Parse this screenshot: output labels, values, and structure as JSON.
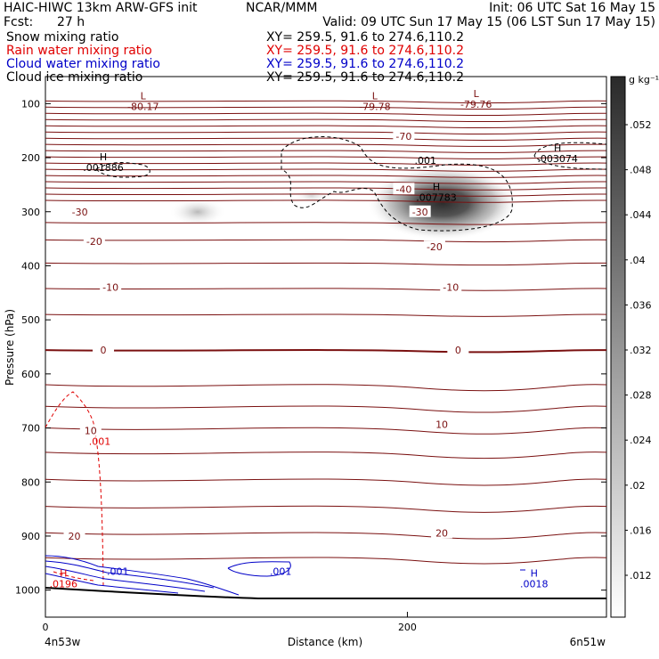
{
  "header": {
    "model": "HAIC-HIWC 13km ARW-GFS init",
    "org": "NCAR/MMM",
    "init": "Init: 06 UTC Sat 16 May 15",
    "fcst_label": "Fcst:",
    "fcst_value": "27 h",
    "valid": "Valid: 09 UTC Sun 17 May 15 (06 LST Sun 17 May 15)",
    "xy": "XY= 259.5, 91.6 to 274.6,110.2"
  },
  "fields": [
    {
      "name": "Snow mixing ratio",
      "color": "#000000"
    },
    {
      "name": "Rain water mixing ratio",
      "color": "#e00000"
    },
    {
      "name": "Cloud water mixing ratio",
      "color": "#0000c8"
    },
    {
      "name": "Cloud ice mixing ratio",
      "color": "#000000"
    }
  ],
  "colors": {
    "temperature": "#7a1010",
    "cloud_ice": "#000000",
    "rain": "#e00000",
    "cloud_water": "#0000c8",
    "terrain": "#000000"
  },
  "chart_data": {
    "type": "contour",
    "xlabel": "Distance (km)",
    "ylabel": "Pressure (hPa)",
    "xlim": [
      0,
      310
    ],
    "ylim": [
      1050,
      50
    ],
    "x_ticks": [
      0,
      200
    ],
    "y_ticks": [
      100,
      200,
      300,
      400,
      500,
      600,
      700,
      800,
      900,
      1000
    ],
    "endpoints": {
      "left": "4n53w",
      "right": "6n51w"
    },
    "colorbar": {
      "unit": "g kg⁻¹",
      "ticks": [
        ".052",
        ".048",
        ".044",
        ".04",
        ".036",
        ".032",
        ".028",
        ".024",
        ".02",
        ".016",
        ".012"
      ]
    },
    "temperature_isotherms": [
      {
        "label": "-70",
        "x": 198,
        "p": 160
      },
      {
        "label": "-40",
        "x": 198,
        "p": 258
      },
      {
        "label": "-30",
        "x": 19,
        "p": 300
      },
      {
        "label": "-30",
        "x": 207,
        "p": 300
      },
      {
        "label": "-20",
        "x": 27,
        "p": 355
      },
      {
        "label": "-20",
        "x": 215,
        "p": 365
      },
      {
        "label": "-10",
        "x": 36,
        "p": 440
      },
      {
        "label": "-10",
        "x": 224,
        "p": 440
      },
      {
        "label": "0",
        "x": 32,
        "p": 556
      },
      {
        "label": "0",
        "x": 228,
        "p": 556
      },
      {
        "label": "10",
        "x": 25,
        "p": 705
      },
      {
        "label": "10",
        "x": 219,
        "p": 693
      },
      {
        "label": "20",
        "x": 16,
        "p": 900
      },
      {
        "label": "20",
        "x": 219,
        "p": 894
      }
    ],
    "extrema": [
      {
        "type": "L",
        "value": "-80.17",
        "x": 54,
        "p": 92
      },
      {
        "type": "L",
        "value": "-79.78",
        "x": 182,
        "p": 92
      },
      {
        "type": "L",
        "value": "-79.76",
        "x": 238,
        "p": 88
      },
      {
        "type": "H",
        "value": ".001886",
        "x": 32,
        "p": 205,
        "field": "Cloud ice mixing ratio"
      },
      {
        "type": "H",
        "value": ".007783",
        "x": 216,
        "p": 260,
        "field": "Snow mixing ratio"
      },
      {
        "type": "H",
        "value": ".003074",
        "x": 283,
        "p": 188,
        "field": "Cloud ice mixing ratio"
      },
      {
        "type": "H",
        "value": ".0196",
        "x": 10,
        "p": 975,
        "field": "Rain water mixing ratio"
      },
      {
        "type": "H",
        "value": ".0018",
        "x": 270,
        "p": 975,
        "field": "Cloud water mixing ratio"
      }
    ],
    "contour_labels": [
      {
        "field": "Cloud ice mixing ratio",
        "value": ".001",
        "x": 210,
        "p": 205
      },
      {
        "field": "Rain water mixing ratio",
        "value": ".001",
        "x": 30,
        "p": 725
      },
      {
        "field": "Cloud water mixing ratio",
        "value": ".001",
        "x": 40,
        "p": 965
      },
      {
        "field": "Cloud water mixing ratio",
        "value": ".001",
        "x": 130,
        "p": 965
      }
    ]
  }
}
